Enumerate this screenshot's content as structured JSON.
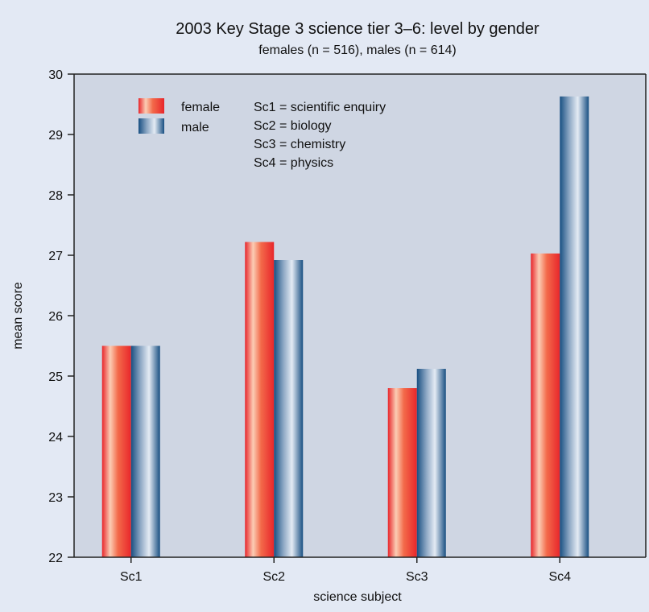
{
  "chart_data": {
    "type": "bar",
    "title": "2003 Key Stage 3 science tier 3–6: level by gender",
    "subtitle": "females (n = 516), males (n = 614)",
    "xlabel": "science subject",
    "ylabel": "mean score",
    "ylim": [
      22,
      30
    ],
    "yticks": [
      22,
      23,
      24,
      25,
      26,
      27,
      28,
      29,
      30
    ],
    "categories": [
      "Sc1",
      "Sc2",
      "Sc3",
      "Sc4"
    ],
    "series": [
      {
        "name": "female",
        "values": [
          25.5,
          27.22,
          24.8,
          27.03
        ]
      },
      {
        "name": "male",
        "values": [
          25.5,
          26.92,
          25.12,
          29.63
        ]
      }
    ],
    "legend_position": "top-left",
    "annotation": [
      "Sc1 = scientific enquiry",
      "Sc2 = biology",
      "Sc3 = chemistry",
      "Sc4 = physics"
    ],
    "grid": false,
    "colors": {
      "background": "#e3e9f4",
      "plot_area": "#cfd6e3",
      "female": "#e8262b",
      "female_light": "#fde1d2",
      "male": "#184f82",
      "male_light": "#e4ebf4"
    }
  }
}
